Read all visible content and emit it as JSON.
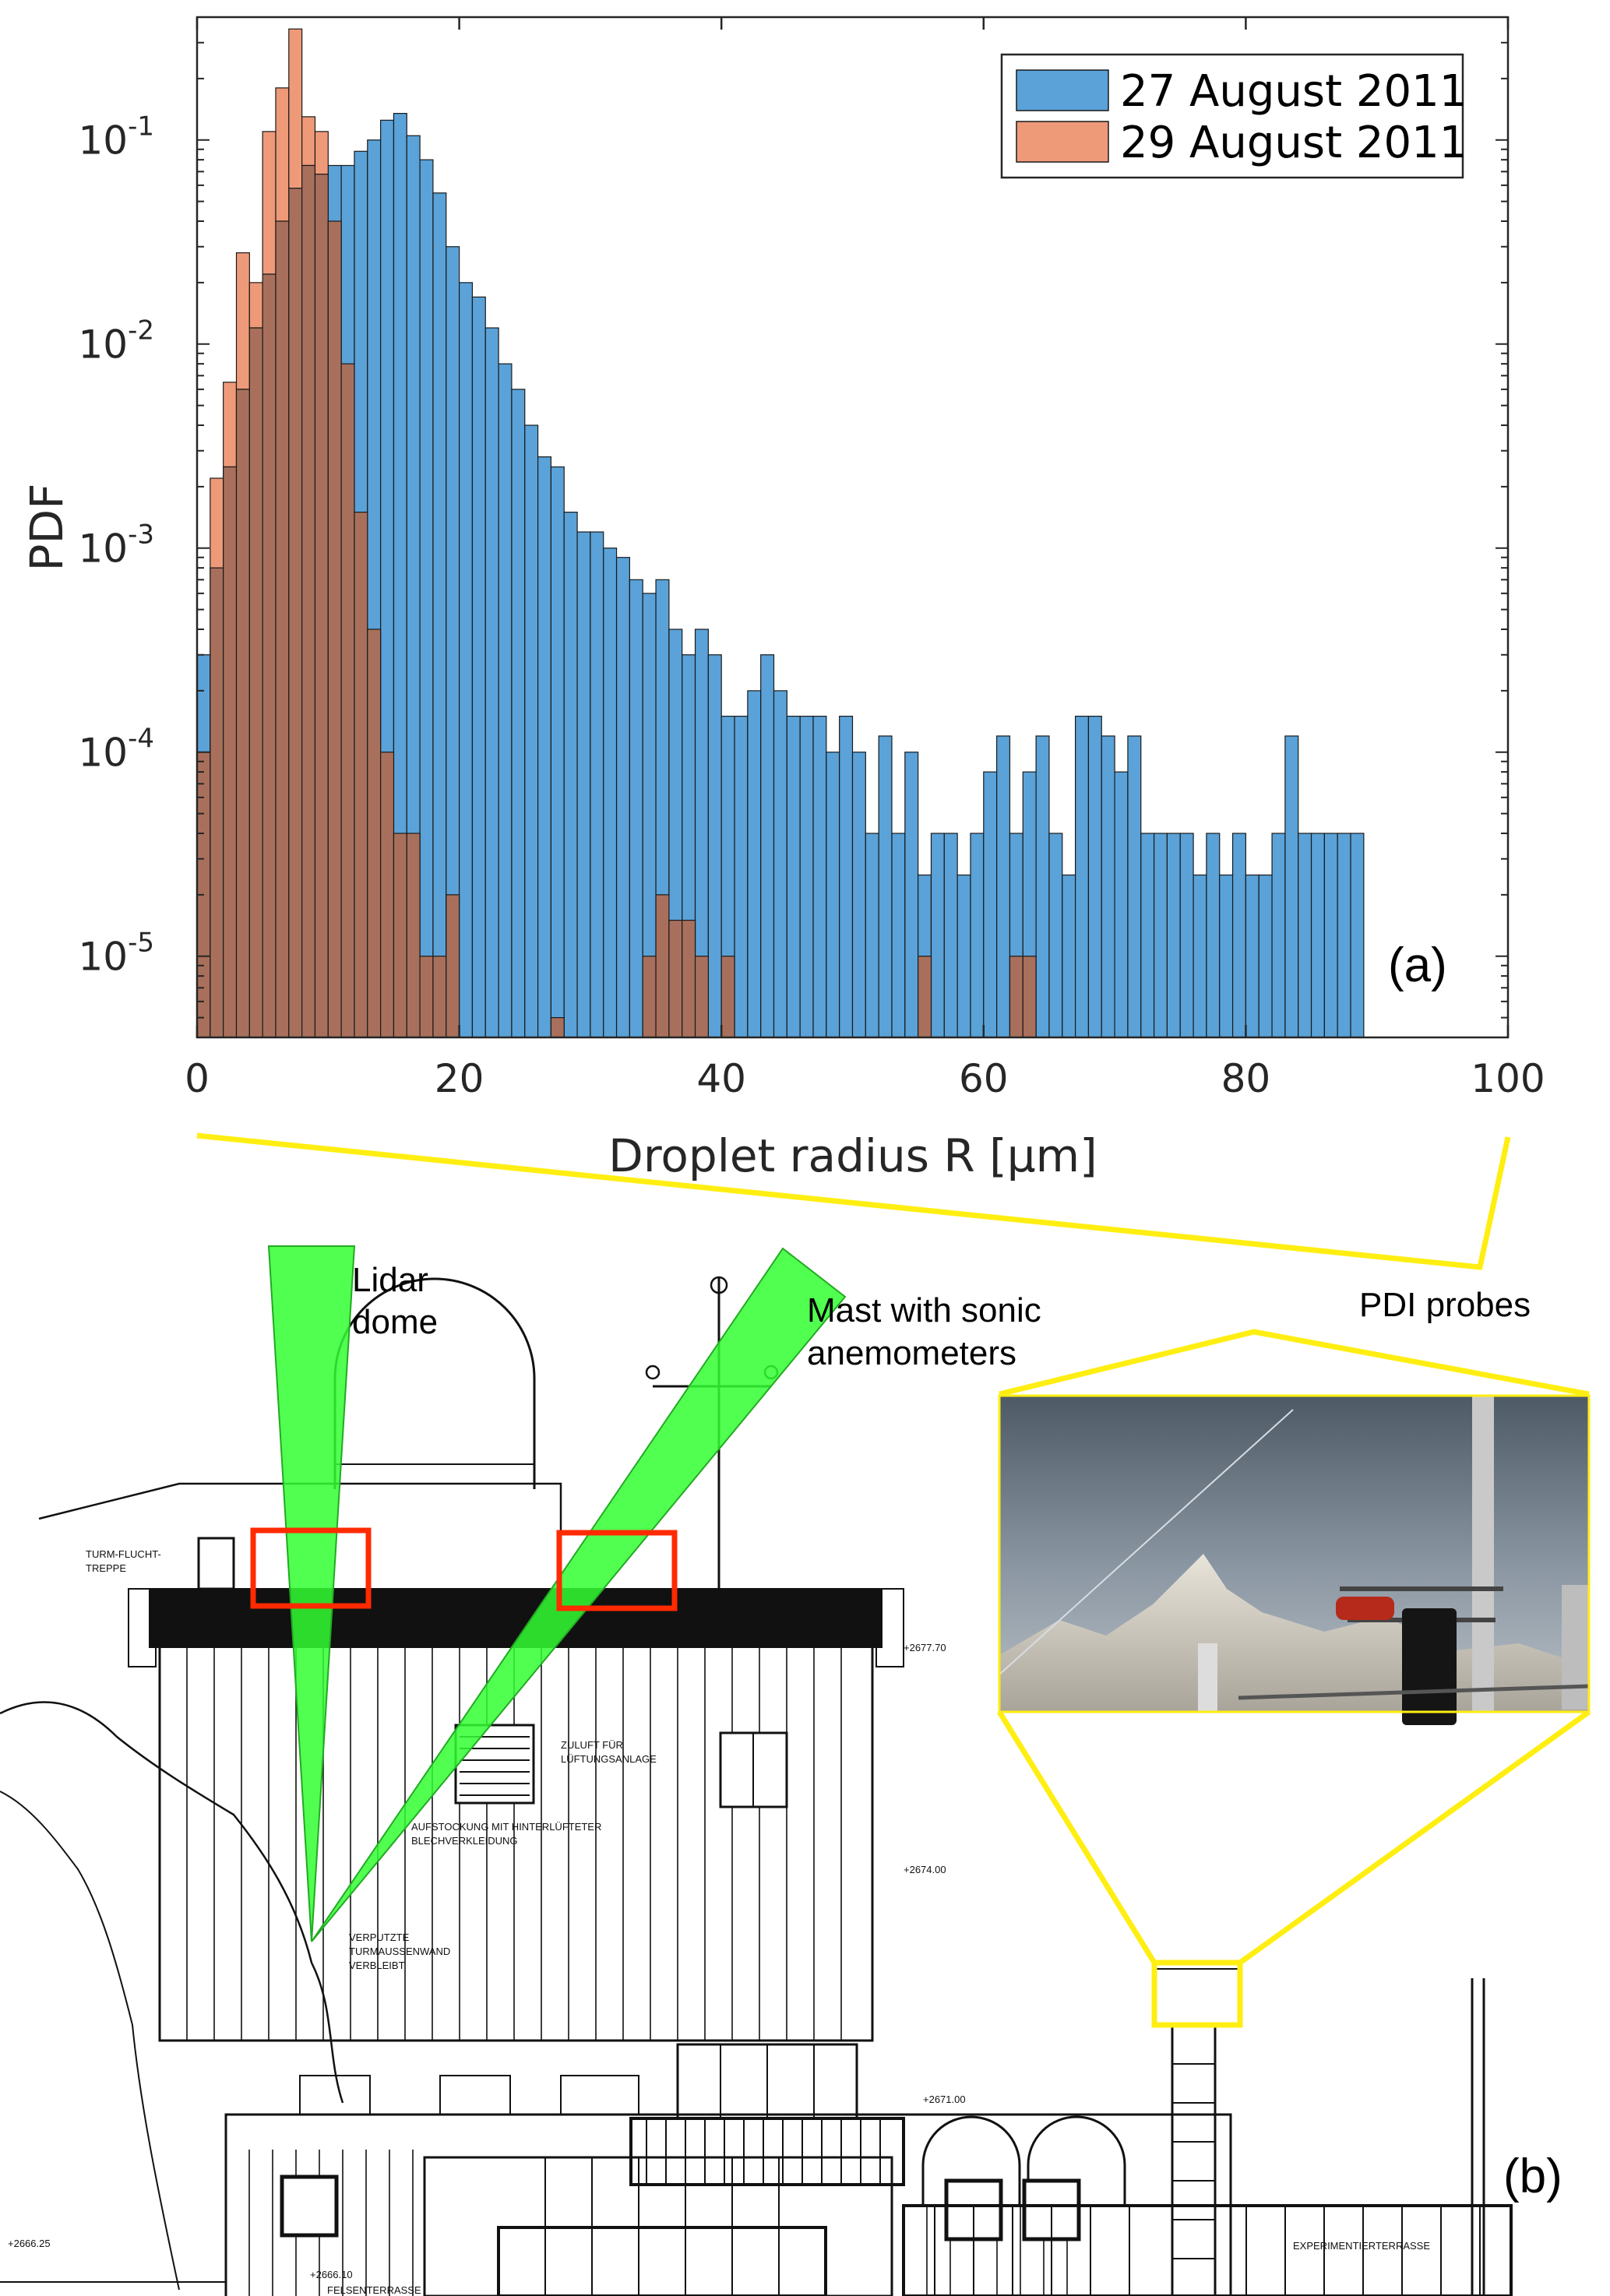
{
  "panel_a_label": "(a)",
  "panel_b_label": "(b)",
  "annotations": {
    "lidar": [
      "Lidar",
      "dome"
    ],
    "mast": [
      "Mast with sonic",
      "anemometers"
    ],
    "pdi": "PDI probes"
  },
  "drawing_labels": {
    "stair": [
      "TURM-FLUCHT-",
      "TREPPE"
    ],
    "zuluft": [
      "ZULUFT FÜR",
      "LÜFTUNGSANLAGE"
    ],
    "aufstockung": [
      "AUFSTOCKUNG MIT HINTERLÜFTETER",
      "BLECHVERKLEIDUNG"
    ],
    "verputzte": [
      "VERPUTZTE",
      "TURMAUSSENWAND",
      "VERBLEIBT"
    ],
    "terrasse": "EXPERIMENTIERTERRASSE",
    "felsen": "FELSENTERRASSE",
    "levels": [
      "+2677.70",
      "+2674.00",
      "+2671.00",
      "+2666.25",
      "+2666.10"
    ]
  },
  "colors": {
    "series_27": "#5aa2d8",
    "series_29_alone": "#ee9a79",
    "overlap": "#a8705c",
    "beam": "#33ff33",
    "marker_red": "#ff2a00",
    "zoom_lines": "#ffee11"
  },
  "chart_data": {
    "type": "bar",
    "ylabel": "PDF",
    "xlabel": "Droplet radius R [μm]",
    "xlim": [
      0,
      100
    ],
    "ylim": [
      4e-06,
      0.4
    ],
    "yscale": "log",
    "bin_width": 1,
    "xticks": [
      0,
      20,
      40,
      60,
      80,
      100
    ],
    "yticks": [
      {
        "value": 1e-05,
        "base": "10",
        "exp": "-5"
      },
      {
        "value": 0.0001,
        "base": "10",
        "exp": "-4"
      },
      {
        "value": 0.001,
        "base": "10",
        "exp": "-3"
      },
      {
        "value": 0.01,
        "base": "10",
        "exp": "-2"
      },
      {
        "value": 0.1,
        "base": "10",
        "exp": "-1"
      }
    ],
    "legend_position": "top-right",
    "grid": false,
    "series": [
      {
        "name": "27 August 2011",
        "x": [
          0,
          1,
          2,
          3,
          4,
          5,
          6,
          7,
          8,
          9,
          10,
          11,
          12,
          13,
          14,
          15,
          16,
          17,
          18,
          19,
          20,
          21,
          22,
          23,
          24,
          25,
          26,
          27,
          28,
          29,
          30,
          31,
          32,
          33,
          34,
          35,
          36,
          37,
          38,
          39,
          40,
          41,
          42,
          43,
          44,
          45,
          46,
          47,
          48,
          49,
          50,
          51,
          52,
          53,
          54,
          55,
          56,
          57,
          58,
          59,
          60,
          61,
          62,
          63,
          64,
          65,
          66,
          67,
          68,
          69,
          70,
          71,
          72,
          73,
          74,
          75,
          76,
          77,
          78,
          79,
          80,
          81,
          82,
          83,
          84,
          85,
          86,
          87,
          88
        ],
        "values": [
          0.0003,
          0.0008,
          0.0025,
          0.006,
          0.012,
          0.022,
          0.04,
          0.058,
          0.075,
          0.068,
          0.075,
          0.075,
          0.088,
          0.1,
          0.125,
          0.135,
          0.105,
          0.08,
          0.055,
          0.03,
          0.02,
          0.017,
          0.012,
          0.008,
          0.006,
          0.004,
          0.0028,
          0.0025,
          0.0015,
          0.0012,
          0.0012,
          0.001,
          0.0009,
          0.0007,
          0.0006,
          0.0007,
          0.0004,
          0.0003,
          0.0004,
          0.0003,
          0.00015,
          0.00015,
          0.0002,
          0.0003,
          0.0002,
          0.00015,
          0.00015,
          0.00015,
          0.0001,
          0.00015,
          0.0001,
          4e-05,
          0.00012,
          4e-05,
          0.0001,
          2.5e-05,
          4e-05,
          4e-05,
          2.5e-05,
          4e-05,
          8e-05,
          0.00012,
          4e-05,
          8e-05,
          0.00012,
          4e-05,
          2.5e-05,
          0.00015,
          0.00015,
          0.00012,
          8e-05,
          0.00012,
          4e-05,
          4e-05,
          4e-05,
          4e-05,
          2.5e-05,
          4e-05,
          2.5e-05,
          4e-05,
          2.5e-05,
          2.5e-05,
          4e-05,
          0.00012,
          4e-05,
          4e-05,
          4e-05,
          4e-05,
          4e-05
        ]
      },
      {
        "name": "29 August 2011",
        "x": [
          0,
          1,
          2,
          3,
          4,
          5,
          6,
          7,
          8,
          9,
          10,
          11,
          12,
          13,
          14,
          15,
          16,
          17,
          18,
          19,
          20,
          21,
          22,
          23,
          24,
          25,
          26,
          27,
          28,
          29,
          30,
          31,
          32,
          33,
          34,
          35,
          36,
          37,
          38,
          39,
          40,
          41,
          42,
          43,
          44,
          45,
          46,
          47,
          48,
          49,
          50,
          51,
          52,
          53,
          54,
          55,
          56,
          57,
          58,
          59,
          60,
          61,
          62,
          63,
          64,
          65,
          66,
          67,
          68,
          69,
          70,
          71,
          72,
          73,
          74,
          75,
          76,
          77,
          78,
          79,
          80,
          81,
          82,
          83,
          84,
          85,
          86,
          87,
          88
        ],
        "values": [
          0.0001,
          0.0022,
          0.0065,
          0.028,
          0.02,
          0.11,
          0.18,
          0.35,
          0.13,
          0.11,
          0.04,
          0.008,
          0.0015,
          0.0004,
          0.0001,
          4e-05,
          4e-05,
          1e-05,
          1e-05,
          2e-05,
          0,
          0,
          0,
          0,
          0,
          0,
          0,
          5e-06,
          0,
          0,
          0,
          0,
          0,
          0,
          1e-05,
          2e-05,
          1.5e-05,
          1.5e-05,
          1e-05,
          0,
          1e-05,
          0,
          0,
          0,
          0,
          0,
          0,
          0,
          0,
          0,
          0,
          0,
          0,
          0,
          0,
          1e-05,
          0,
          0,
          0,
          0,
          0,
          0,
          1e-05,
          1e-05,
          0,
          0,
          0,
          0,
          0,
          0,
          0,
          0,
          0,
          0,
          0,
          0,
          0,
          0,
          0,
          0,
          0,
          0,
          0,
          0,
          0,
          0,
          0,
          0,
          0
        ]
      }
    ]
  }
}
